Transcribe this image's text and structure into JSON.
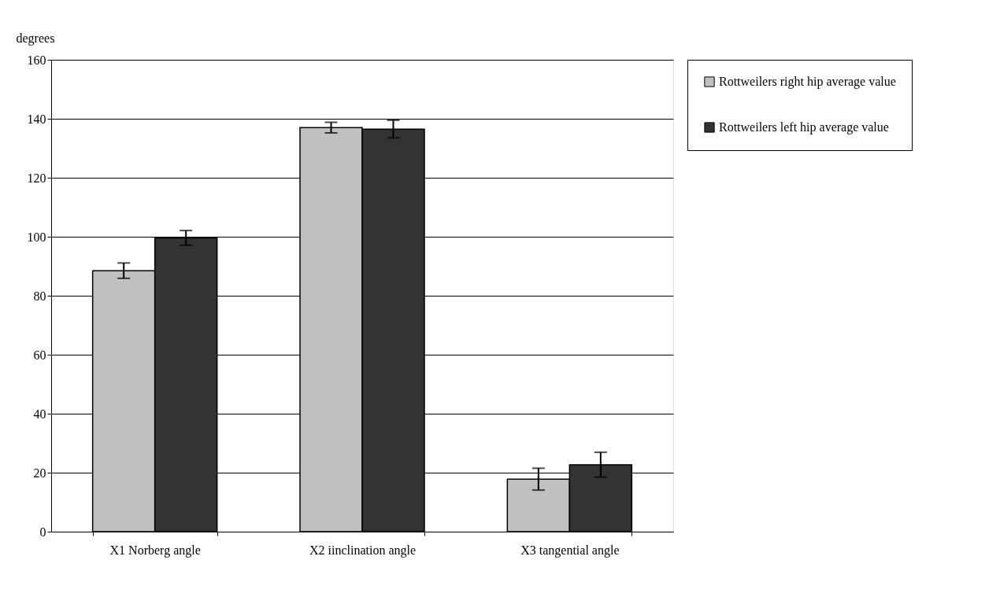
{
  "chart_data": {
    "type": "bar",
    "ylabel": "degrees",
    "categories": [
      "X1 Norberg angle",
      "X2 iinclination angle",
      "X3 tangential angle"
    ],
    "series": [
      {
        "name": "Rottweilers right hip average value",
        "color": "#c0c0c0",
        "values": [
          88.5,
          137.0,
          17.8
        ],
        "errors": [
          2.6,
          1.8,
          3.7
        ]
      },
      {
        "name": "Rottweilers left hip average value",
        "color": "#333333",
        "values": [
          99.6,
          136.5,
          22.7
        ],
        "errors": [
          2.5,
          3.0,
          4.2
        ]
      }
    ],
    "ylim": [
      0,
      160
    ],
    "yticks": [
      0,
      20,
      40,
      60,
      80,
      100,
      120,
      140,
      160
    ],
    "grid": "y",
    "legend": "right"
  }
}
